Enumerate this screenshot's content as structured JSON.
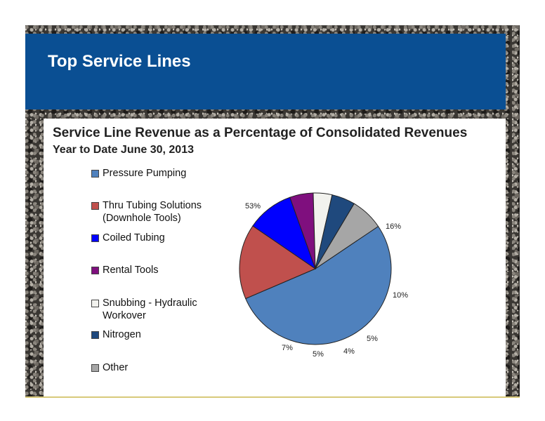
{
  "slide": {
    "heading": "Top Service Lines",
    "colors": {
      "banner": "#0a4f93"
    }
  },
  "chart_data": {
    "type": "pie",
    "title": "Service Line Revenue as a Percentage of Consolidated Revenues",
    "subtitle": "Year to Date June 30, 2013",
    "legend_position": "left",
    "slices": [
      {
        "label": "Pressure Pumping",
        "value": 53,
        "value_label": "53%",
        "color": "#4f81bd"
      },
      {
        "label": "Thru Tubing Solutions (Downhole Tools)",
        "value": 16,
        "value_label": "16%",
        "color": "#c0504d"
      },
      {
        "label": "Coiled Tubing",
        "value": 10,
        "value_label": "10%",
        "color": "#0000ff"
      },
      {
        "label": "Rental Tools",
        "value": 5,
        "value_label": "5%",
        "color": "#7f0f7e"
      },
      {
        "label": "Snubbing - Hydraulic Workover",
        "value": 4,
        "value_label": "4%",
        "color": "#f2f2ee"
      },
      {
        "label": "Nitrogen",
        "value": 5,
        "value_label": "5%",
        "color": "#1f497d"
      },
      {
        "label": "Other",
        "value": 7,
        "value_label": "7%",
        "color": "#a6a6a6"
      }
    ]
  }
}
